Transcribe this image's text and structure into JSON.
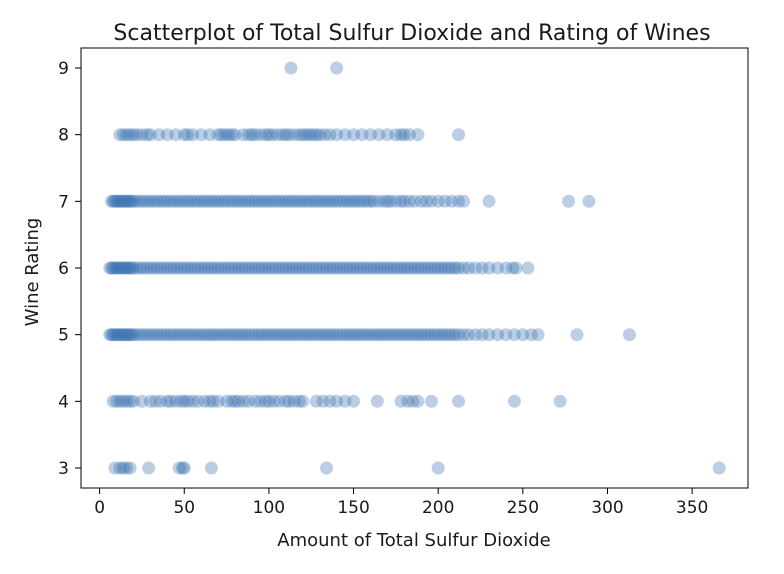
{
  "chart_data": {
    "type": "scatter",
    "title": "Scatterplot of Total Sulfur Dioxide and Rating of Wines",
    "xlabel": "Amount of Total Sulfur Dioxide",
    "ylabel": "Wine Rating",
    "xlim": [
      -11,
      383
    ],
    "ylim": [
      2.7,
      9.3
    ],
    "xticks": [
      0,
      50,
      100,
      150,
      200,
      250,
      300,
      350
    ],
    "yticks": [
      3,
      4,
      5,
      6,
      7,
      8,
      9
    ],
    "grid": false,
    "legend": "none",
    "marker_color": "#3b73b3",
    "marker_alpha": 0.35,
    "series": [
      {
        "values": [
          {
            "y": 9,
            "x": [
              113,
              140
            ]
          },
          {
            "y": 8,
            "x": [
              12,
              14,
              16,
              18,
              20,
              22,
              25,
              28,
              30,
              35,
              40,
              45,
              50,
              52,
              55,
              60,
              65,
              70,
              72,
              74,
              76,
              78,
              80,
              85,
              88,
              90,
              92,
              95,
              98,
              100,
              102,
              105,
              108,
              110,
              112,
              115,
              118,
              120,
              122,
              124,
              126,
              128,
              130,
              133,
              136,
              140,
              145,
              150,
              155,
              160,
              165,
              170,
              175,
              178,
              180,
              183,
              188,
              212
            ]
          },
          {
            "y": 7,
            "x": [
              7,
              8,
              9,
              10,
              11,
              12,
              13,
              14,
              15,
              16,
              17,
              18,
              19,
              20,
              22,
              24,
              26,
              28,
              30,
              32,
              34,
              36,
              38,
              40,
              42,
              44,
              46,
              48,
              50,
              52,
              54,
              56,
              58,
              60,
              62,
              64,
              66,
              68,
              70,
              72,
              74,
              76,
              78,
              80,
              82,
              84,
              86,
              88,
              90,
              92,
              94,
              96,
              98,
              100,
              102,
              104,
              106,
              108,
              110,
              112,
              114,
              116,
              118,
              120,
              122,
              124,
              126,
              128,
              130,
              132,
              134,
              136,
              138,
              140,
              142,
              144,
              146,
              148,
              150,
              152,
              154,
              156,
              158,
              160,
              162,
              165,
              168,
              170,
              172,
              175,
              178,
              180,
              183,
              186,
              190,
              193,
              196,
              200,
              204,
              208,
              212,
              215,
              230,
              277,
              289
            ]
          },
          {
            "y": 6,
            "x": [
              6,
              7,
              8,
              9,
              10,
              11,
              12,
              13,
              14,
              15,
              16,
              17,
              18,
              19,
              20,
              22,
              24,
              26,
              28,
              30,
              32,
              34,
              36,
              38,
              40,
              42,
              44,
              46,
              48,
              50,
              52,
              54,
              56,
              58,
              60,
              62,
              64,
              66,
              68,
              70,
              72,
              74,
              76,
              78,
              80,
              82,
              84,
              86,
              88,
              90,
              92,
              94,
              96,
              98,
              100,
              102,
              104,
              106,
              108,
              110,
              112,
              114,
              116,
              118,
              120,
              122,
              124,
              126,
              128,
              130,
              132,
              134,
              136,
              138,
              140,
              142,
              144,
              146,
              148,
              150,
              152,
              154,
              156,
              158,
              160,
              162,
              164,
              166,
              168,
              170,
              172,
              174,
              176,
              178,
              180,
              182,
              184,
              186,
              188,
              190,
              192,
              194,
              196,
              198,
              200,
              202,
              204,
              206,
              208,
              210,
              212,
              215,
              218,
              222,
              226,
              230,
              235,
              240,
              244,
              246,
              253
            ]
          },
          {
            "y": 5,
            "x": [
              6,
              7,
              8,
              9,
              10,
              11,
              12,
              13,
              14,
              15,
              16,
              17,
              18,
              19,
              20,
              22,
              24,
              26,
              28,
              30,
              32,
              34,
              36,
              38,
              40,
              42,
              44,
              46,
              48,
              50,
              52,
              54,
              56,
              58,
              60,
              62,
              64,
              66,
              68,
              70,
              72,
              74,
              76,
              78,
              80,
              82,
              84,
              86,
              88,
              90,
              92,
              94,
              96,
              98,
              100,
              102,
              104,
              106,
              108,
              110,
              112,
              114,
              116,
              118,
              120,
              122,
              124,
              126,
              128,
              130,
              132,
              134,
              136,
              138,
              140,
              142,
              144,
              146,
              148,
              150,
              152,
              154,
              156,
              158,
              160,
              162,
              164,
              166,
              168,
              170,
              172,
              174,
              176,
              178,
              180,
              182,
              184,
              186,
              188,
              190,
              192,
              194,
              196,
              198,
              200,
              202,
              204,
              206,
              208,
              210,
              212,
              215,
              218,
              222,
              226,
              230,
              235,
              240,
              245,
              250,
              255,
              259,
              282,
              313
            ]
          },
          {
            "y": 4,
            "x": [
              8,
              10,
              12,
              14,
              16,
              18,
              20,
              25,
              30,
              33,
              36,
              40,
              42,
              45,
              48,
              50,
              52,
              55,
              58,
              62,
              65,
              67,
              70,
              75,
              78,
              80,
              82,
              85,
              88,
              92,
              95,
              98,
              100,
              103,
              106,
              110,
              112,
              115,
              118,
              120,
              128,
              132,
              136,
              140,
              145,
              150,
              164,
              178,
              182,
              185,
              188,
              196,
              212,
              245,
              272
            ]
          },
          {
            "y": 3,
            "x": [
              9,
              12,
              14,
              16,
              18,
              29,
              47,
              49,
              50,
              66,
              134,
              200,
              366
            ]
          }
        ]
      }
    ]
  }
}
